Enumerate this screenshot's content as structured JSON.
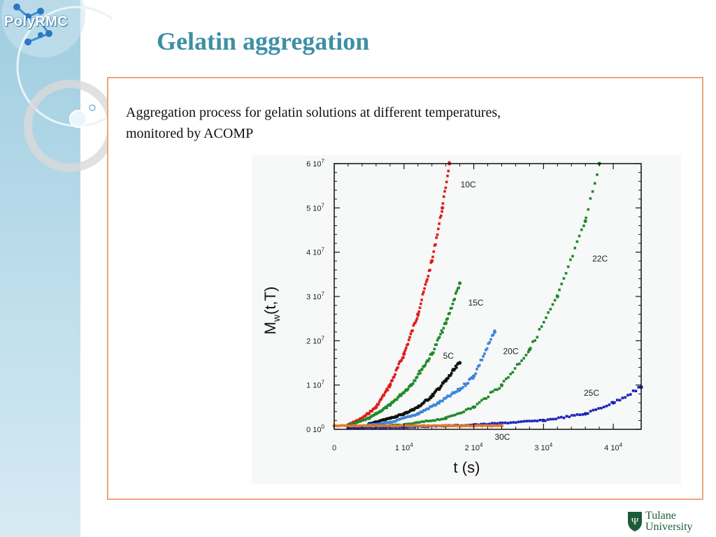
{
  "sidebar": {
    "logo_text": "PolyRMC"
  },
  "slide": {
    "title": "Gelatin aggregation",
    "caption_line1": "Aggregation process for gelatin solutions at different temperatures,",
    "caption_line2": "monitored by ACOMP"
  },
  "footer": {
    "university_line1": "Tulane",
    "university_line2": "University"
  },
  "chart_data": {
    "type": "scatter",
    "title": "",
    "xlabel": "t (s)",
    "ylabel": "Mw(t,T)",
    "xlim": [
      0,
      44000
    ],
    "ylim": [
      0,
      60000000
    ],
    "xticks": [
      {
        "value": 0,
        "label": "0"
      },
      {
        "value": 10000,
        "label": "1 10^4"
      },
      {
        "value": 20000,
        "label": "2 10^4"
      },
      {
        "value": 30000,
        "label": "3 10^4"
      },
      {
        "value": 40000,
        "label": "4 10^4"
      }
    ],
    "yticks": [
      {
        "value": 0,
        "label": "0 10^0"
      },
      {
        "value": 10000000,
        "label": "1 10^7"
      },
      {
        "value": 20000000,
        "label": "2 10^7"
      },
      {
        "value": 30000000,
        "label": "3 10^7"
      },
      {
        "value": 40000000,
        "label": "4 10^7"
      },
      {
        "value": 50000000,
        "label": "5 10^7"
      },
      {
        "value": 60000000,
        "label": "6 10^7"
      }
    ],
    "series": [
      {
        "name": "10C",
        "color": "#e01b1b",
        "x": [
          2000,
          4000,
          6000,
          8000,
          10000,
          12000,
          14000,
          15500,
          16500
        ],
        "y": [
          1000000,
          2500000,
          5000000,
          10000000,
          17000000,
          26000000,
          38000000,
          50000000,
          60000000
        ]
      },
      {
        "name": "15C",
        "color": "#1f8a2a",
        "x": [
          2000,
          5000,
          8000,
          11000,
          14000,
          16000,
          18000
        ],
        "y": [
          800000,
          2500000,
          5500000,
          10000000,
          17000000,
          24000000,
          33000000
        ]
      },
      {
        "name": "5C",
        "color": "#111111",
        "x": [
          5000,
          8000,
          10000,
          12000,
          14000,
          16000,
          18000
        ],
        "y": [
          1200000,
          2500000,
          3500000,
          5000000,
          7500000,
          11000000,
          15000000
        ]
      },
      {
        "name": "20C",
        "color": "#3c84dc",
        "x": [
          3000,
          8000,
          12000,
          15000,
          18000,
          20000,
          23000
        ],
        "y": [
          600000,
          1500000,
          3500000,
          6000000,
          9000000,
          12000000,
          22000000
        ]
      },
      {
        "name": "22C",
        "color": "#1f8a2a",
        "x": [
          3000,
          10000,
          16000,
          20000,
          24000,
          28000,
          32000,
          36000,
          38000
        ],
        "y": [
          500000,
          1000000,
          2500000,
          5000000,
          10000000,
          18000000,
          30000000,
          47000000,
          60000000
        ]
      },
      {
        "name": "25C",
        "color": "#1a23b8",
        "x": [
          2000,
          10000,
          20000,
          30000,
          36000,
          40000,
          44000
        ],
        "y": [
          300000,
          500000,
          1000000,
          2000000,
          3500000,
          6000000,
          9500000
        ]
      },
      {
        "name": "30C",
        "color": "#e07b2a",
        "x": [
          0,
          8000,
          16000,
          24000
        ],
        "y": [
          800000,
          800000,
          800000,
          800000
        ]
      }
    ],
    "grid": false,
    "legend": "none"
  }
}
